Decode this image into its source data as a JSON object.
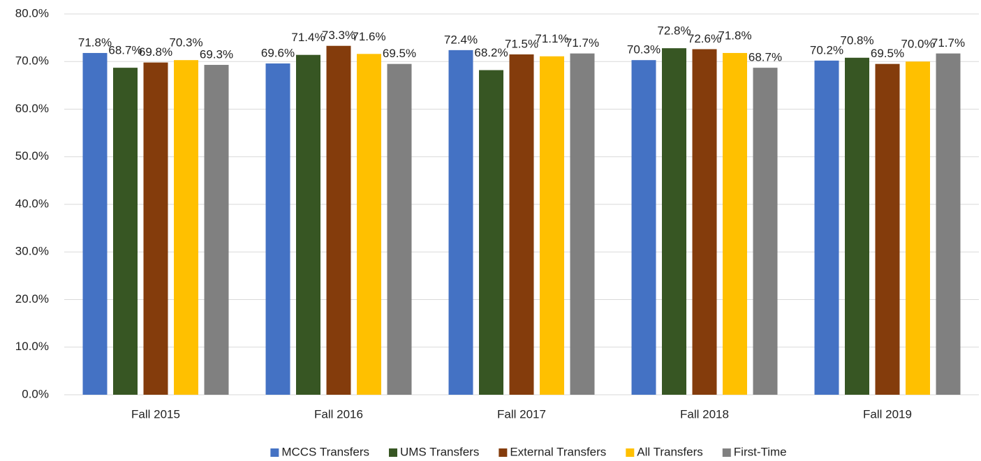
{
  "chart_data": {
    "type": "bar",
    "categories": [
      "Fall 2015",
      "Fall 2016",
      "Fall 2017",
      "Fall 2018",
      "Fall 2019"
    ],
    "series": [
      {
        "name": "MCCS Transfers",
        "color": "#4472c4",
        "values": [
          71.8,
          69.6,
          72.4,
          70.3,
          70.2
        ],
        "value_labels": [
          "71.8%",
          "69.6%",
          "72.4%",
          "70.3%",
          "70.2%"
        ]
      },
      {
        "name": "UMS Transfers",
        "color": "#375623",
        "values": [
          68.7,
          71.4,
          68.2,
          72.8,
          70.8
        ],
        "value_labels": [
          "68.7%",
          "71.4%",
          "68.2%",
          "72.8%",
          "70.8%"
        ]
      },
      {
        "name": "External Transfers",
        "color": "#843c0c",
        "values": [
          69.8,
          73.3,
          71.5,
          72.6,
          69.5
        ],
        "value_labels": [
          "69.8%",
          "73.3%",
          "71.5%",
          "72.6%",
          "69.5%"
        ]
      },
      {
        "name": "All Transfers",
        "color": "#ffc000",
        "values": [
          70.3,
          71.6,
          71.1,
          71.8,
          70.0
        ],
        "value_labels": [
          "70.3%",
          "71.6%",
          "71.1%",
          "71.8%",
          "70.0%"
        ]
      },
      {
        "name": "First-Time",
        "color": "#808080",
        "values": [
          69.3,
          69.5,
          71.7,
          68.7,
          71.7
        ],
        "value_labels": [
          "69.3%",
          "69.5%",
          "71.7%",
          "68.7%",
          "71.7%"
        ]
      }
    ],
    "ylim": [
      0,
      80
    ],
    "yticks": [
      {
        "value": 0,
        "label": "0.0%"
      },
      {
        "value": 10,
        "label": "10.0%"
      },
      {
        "value": 20,
        "label": "20.0%"
      },
      {
        "value": 30,
        "label": "30.0%"
      },
      {
        "value": 40,
        "label": "40.0%"
      },
      {
        "value": 50,
        "label": "50.0%"
      },
      {
        "value": 60,
        "label": "60.0%"
      },
      {
        "value": 70,
        "label": "70.0%"
      },
      {
        "value": 80,
        "label": "80.0%"
      }
    ],
    "grid": true,
    "legend": "bottom"
  }
}
